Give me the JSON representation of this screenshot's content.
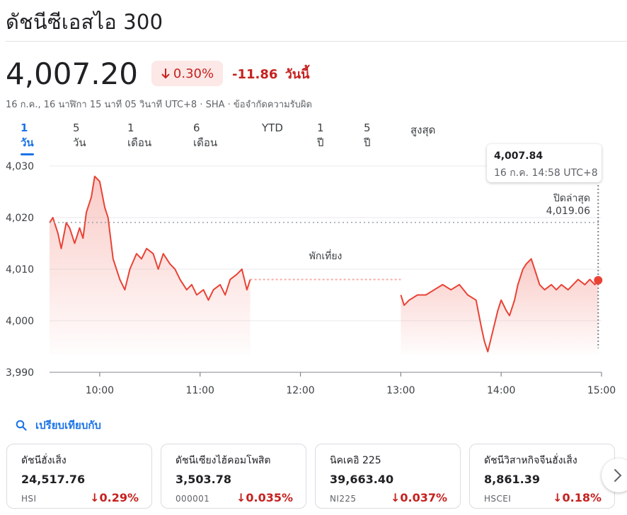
{
  "header": {
    "title": "ดัชนีซีเอสไอ 300",
    "price": "4,007.20",
    "change_pct": "0.30%",
    "change_abs": "-11.86",
    "change_period": "วันนี้",
    "meta": "16 ก.ค., 16 นาฬิกา 15 นาที 05 วินาที UTC+8 · SHA · ข้อจำกัดความรับผิด"
  },
  "tabs": [
    {
      "label": "1 วัน",
      "active": true
    },
    {
      "label": "5 วัน",
      "active": false
    },
    {
      "label": "1 เดือน",
      "active": false
    },
    {
      "label": "6 เดือน",
      "active": false
    },
    {
      "label": "YTD",
      "active": false
    },
    {
      "label": "1 ปี",
      "active": false
    },
    {
      "label": "5 ปี",
      "active": false
    },
    {
      "label": "สูงสุด",
      "active": false
    }
  ],
  "tooltip": {
    "value": "4,007.84",
    "time": "16 ก.ค. 14:58 UTC+8"
  },
  "prev_close": {
    "label": "ปิดล่าสุด",
    "value": "4,019.06"
  },
  "lunch_label": "พักเที่ยง",
  "colors": {
    "negative": "#c5221f",
    "line": "#e94235",
    "accent": "#1a73e8"
  },
  "compare": {
    "label": "เปรียบเทียบกับ",
    "icon": "search-icon"
  },
  "cards": [
    {
      "name": "ดัชนีฮั่งเส็ง",
      "value": "24,517.76",
      "symbol": "HSI",
      "pct": "0.29%"
    },
    {
      "name": "ดัชนีเซียงไฮ้คอมโพสิต",
      "value": "3,503.78",
      "symbol": "000001",
      "pct": "0.035%"
    },
    {
      "name": "นิคเคอิ 225",
      "value": "39,663.40",
      "symbol": "NI225",
      "pct": "0.037%"
    },
    {
      "name": "ดัชนีวิสาหกิจจีนฮั่งเส็ง",
      "value": "8,861.39",
      "symbol": "HSCEI",
      "pct": "0.18%"
    }
  ],
  "chart_data": {
    "type": "line",
    "yticks": [
      "4,030",
      "4,020",
      "4,010",
      "4,000",
      "3,990"
    ],
    "xticks": [
      "10:00",
      "11:00",
      "12:00",
      "13:00",
      "14:00",
      "15:00"
    ],
    "ylim": [
      3990,
      4030
    ],
    "xlim": [
      "09:30",
      "15:00"
    ],
    "prev_close": 4019.06,
    "gap": [
      "11:30",
      "13:00"
    ],
    "series": [
      {
        "points": [
          [
            "09:30",
            4019
          ],
          [
            "09:32",
            4020
          ],
          [
            "09:35",
            4017
          ],
          [
            "09:37",
            4014
          ],
          [
            "09:40",
            4019
          ],
          [
            "09:42",
            4018
          ],
          [
            "09:45",
            4015
          ],
          [
            "09:48",
            4018
          ],
          [
            "09:50",
            4016
          ],
          [
            "09:52",
            4021
          ],
          [
            "09:55",
            4024
          ],
          [
            "09:57",
            4028
          ],
          [
            "10:00",
            4027
          ],
          [
            "10:03",
            4022
          ],
          [
            "10:05",
            4020
          ],
          [
            "10:08",
            4012
          ],
          [
            "10:12",
            4008
          ],
          [
            "10:15",
            4006
          ],
          [
            "10:18",
            4010
          ],
          [
            "10:22",
            4013
          ],
          [
            "10:25",
            4012
          ],
          [
            "10:28",
            4014
          ],
          [
            "10:32",
            4013
          ],
          [
            "10:35",
            4010
          ],
          [
            "10:38",
            4013
          ],
          [
            "10:42",
            4011
          ],
          [
            "10:45",
            4010
          ],
          [
            "10:48",
            4008
          ],
          [
            "10:52",
            4006
          ],
          [
            "10:55",
            4007
          ],
          [
            "10:58",
            4005
          ],
          [
            "11:02",
            4006
          ],
          [
            "11:05",
            4004
          ],
          [
            "11:08",
            4006
          ],
          [
            "11:12",
            4007
          ],
          [
            "11:15",
            4005
          ],
          [
            "11:18",
            4008
          ],
          [
            "11:22",
            4009
          ],
          [
            "11:25",
            4010
          ],
          [
            "11:28",
            4006
          ],
          [
            "11:30",
            4008
          ],
          [
            "13:00",
            4005
          ],
          [
            "13:02",
            4003
          ],
          [
            "13:05",
            4004
          ],
          [
            "13:10",
            4005
          ],
          [
            "13:15",
            4005
          ],
          [
            "13:20",
            4006
          ],
          [
            "13:25",
            4007
          ],
          [
            "13:30",
            4006
          ],
          [
            "13:35",
            4007
          ],
          [
            "13:40",
            4005
          ],
          [
            "13:45",
            4004
          ],
          [
            "13:48",
            3999
          ],
          [
            "13:50",
            3996
          ],
          [
            "13:52",
            3994
          ],
          [
            "13:55",
            3998
          ],
          [
            "13:58",
            4002
          ],
          [
            "14:00",
            4004
          ],
          [
            "14:03",
            4002
          ],
          [
            "14:05",
            4001
          ],
          [
            "14:08",
            4004
          ],
          [
            "14:10",
            4007
          ],
          [
            "14:13",
            4010
          ],
          [
            "14:15",
            4011
          ],
          [
            "14:18",
            4012
          ],
          [
            "14:20",
            4010
          ],
          [
            "14:23",
            4007
          ],
          [
            "14:26",
            4006
          ],
          [
            "14:30",
            4007
          ],
          [
            "14:33",
            4006
          ],
          [
            "14:36",
            4007
          ],
          [
            "14:40",
            4006
          ],
          [
            "14:43",
            4007
          ],
          [
            "14:46",
            4008
          ],
          [
            "14:50",
            4007
          ],
          [
            "14:53",
            4008
          ],
          [
            "14:56",
            4007
          ],
          [
            "14:58",
            4007.84
          ]
        ]
      }
    ]
  }
}
